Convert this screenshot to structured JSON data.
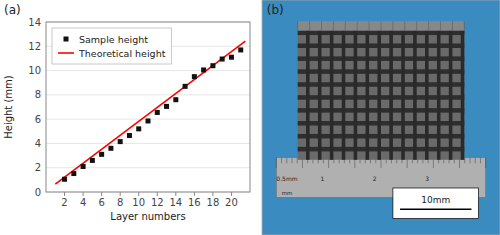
{
  "chart_data": {
    "type": "scatter",
    "title": "(a)",
    "x_label": "Layer numbers",
    "y_label": "Height  (mm)",
    "xlim": [
      0,
      22
    ],
    "ylim": [
      0,
      14
    ],
    "xticks": [
      2,
      4,
      6,
      8,
      10,
      12,
      14,
      16,
      18,
      20
    ],
    "yticks": [
      0,
      2,
      4,
      6,
      8,
      10,
      12,
      14
    ],
    "legend": "upper left",
    "series": [
      {
        "name": "Sample height",
        "type": "scatter",
        "marker": "square",
        "color": "#111111",
        "x": [
          2,
          3,
          4,
          5,
          6,
          7,
          8,
          9,
          10,
          11,
          12,
          13,
          14,
          15,
          16,
          17,
          18,
          19,
          20,
          21
        ],
        "values": [
          1.05,
          1.52,
          2.1,
          2.6,
          3.1,
          3.6,
          4.15,
          4.65,
          5.2,
          5.85,
          6.55,
          7.05,
          7.6,
          8.7,
          9.5,
          10.05,
          10.4,
          10.95,
          11.1,
          11.7
        ]
      },
      {
        "name": "Theoretical height",
        "type": "line",
        "color": "#ff0000",
        "x": [
          1,
          21.5
        ],
        "values": [
          0.645,
          12.4325
        ]
      }
    ],
    "annotations": [
      "(b)",
      "0.5mm",
      "1",
      "2",
      "3",
      "mm",
      "10mm"
    ]
  }
}
